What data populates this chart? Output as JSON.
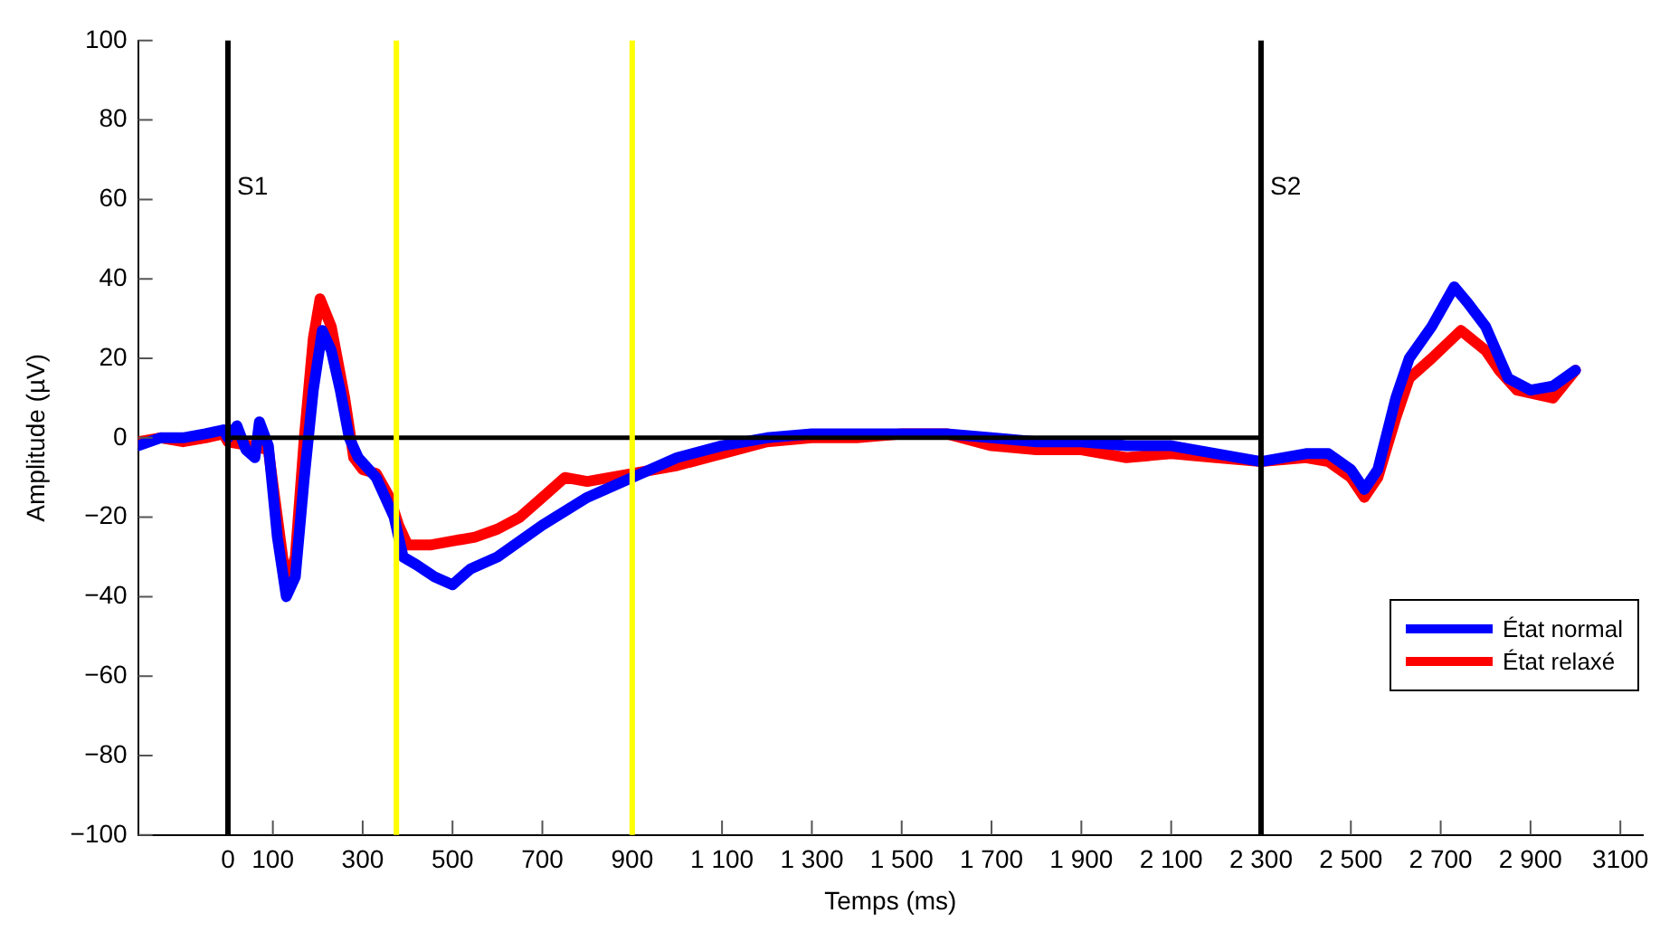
{
  "chart_data": {
    "type": "line",
    "xlabel": "Temps (ms)",
    "ylabel": "Amplitude (µV)",
    "xlim": [
      -200,
      3150
    ],
    "xticks": [
      0,
      100,
      300,
      500,
      700,
      900,
      {
        "value": 1100,
        "label": "1 100"
      },
      {
        "value": 1300,
        "label": "1 300"
      },
      {
        "value": 1500,
        "label": "1 500"
      },
      {
        "value": 1700,
        "label": "1 700"
      },
      {
        "value": 1900,
        "label": "1 900"
      },
      {
        "value": 2100,
        "label": "2 100"
      },
      {
        "value": 2300,
        "label": "2 300"
      },
      {
        "value": 2500,
        "label": "2 500"
      },
      {
        "value": 2700,
        "label": "2 700"
      },
      {
        "value": 2900,
        "label": "2 900"
      },
      3100
    ],
    "ylim": [
      -100,
      100
    ],
    "yticks": [
      {
        "value": -100,
        "label": "−100"
      },
      {
        "value": -80,
        "label": "−80"
      },
      {
        "value": -60,
        "label": "−60"
      },
      {
        "value": -40,
        "label": "−40"
      },
      {
        "value": -20,
        "label": "−20"
      },
      0,
      20,
      40,
      60,
      80,
      100
    ],
    "grid": false,
    "legend": "bottom right",
    "marker": "none",
    "line_style": "solid",
    "series": [
      {
        "name": "État normal",
        "color": "#0000ff",
        "x": [
          -200,
          -150,
          -100,
          -50,
          -10,
          0,
          20,
          40,
          60,
          70,
          90,
          110,
          130,
          150,
          170,
          190,
          210,
          230,
          250,
          270,
          290,
          330,
          370,
          390,
          420,
          460,
          500,
          540,
          600,
          700,
          800,
          900,
          1000,
          1100,
          1200,
          1300,
          1400,
          1500,
          1600,
          1700,
          1800,
          1900,
          2000,
          2100,
          2200,
          2300,
          2400,
          2450,
          2500,
          2530,
          2560,
          2600,
          2630,
          2680,
          2730,
          2760,
          2800,
          2850,
          2900,
          2950,
          3000
        ],
        "values": [
          -2,
          0,
          0,
          1,
          2,
          0,
          3,
          -3,
          -5,
          4,
          -2,
          -25,
          -40,
          -35,
          -10,
          12,
          27,
          22,
          12,
          0,
          -5,
          -10,
          -20,
          -30,
          -32,
          -35,
          -37,
          -33,
          -30,
          -22,
          -15,
          -10,
          -5,
          -2,
          0,
          1,
          1,
          1,
          1,
          0,
          -1,
          -1,
          -2,
          -2,
          -4,
          -6,
          -4,
          -4,
          -8,
          -13,
          -8,
          10,
          20,
          28,
          38,
          34,
          28,
          15,
          12,
          13,
          17
        ]
      },
      {
        "name": "État relaxé",
        "color": "#ff0000",
        "x": [
          -200,
          -150,
          -100,
          -50,
          -10,
          0,
          50,
          90,
          110,
          130,
          150,
          170,
          190,
          205,
          230,
          260,
          280,
          300,
          330,
          360,
          380,
          400,
          450,
          500,
          550,
          600,
          650,
          700,
          750,
          800,
          900,
          1000,
          1100,
          1200,
          1300,
          1400,
          1500,
          1600,
          1700,
          1800,
          1900,
          2000,
          2100,
          2200,
          2300,
          2400,
          2450,
          2500,
          2530,
          2560,
          2600,
          2630,
          2680,
          2745,
          2800,
          2830,
          2870,
          2950,
          3000
        ],
        "values": [
          -1,
          0,
          -1,
          0,
          1,
          -1,
          -2,
          -3,
          -20,
          -37,
          -30,
          0,
          25,
          35,
          28,
          10,
          -5,
          -8,
          -9,
          -15,
          -22,
          -27,
          -27,
          -26,
          -25,
          -23,
          -20,
          -15,
          -10,
          -11,
          -9,
          -7,
          -4,
          -1,
          0,
          0,
          1,
          1,
          -2,
          -3,
          -3,
          -5,
          -4,
          -5,
          -6,
          -5,
          -6,
          -10,
          -15,
          -10,
          5,
          15,
          20,
          27,
          22,
          17,
          12,
          10,
          17
        ]
      },
      {
        "color": "#000000",
        "x": [
          0,
          2300
        ],
        "values": [
          0,
          0
        ]
      }
    ],
    "ref_lines": [
      {
        "axis": "x",
        "value": 0,
        "label": "S1",
        "color": "#000000"
      },
      {
        "axis": "x",
        "value": 375,
        "label": null,
        "color": "#ffff00"
      },
      {
        "axis": "x",
        "value": 900,
        "label": null,
        "color": "#ffff00"
      },
      {
        "axis": "x",
        "value": 2300,
        "label": "S2",
        "color": "#000000"
      }
    ]
  }
}
